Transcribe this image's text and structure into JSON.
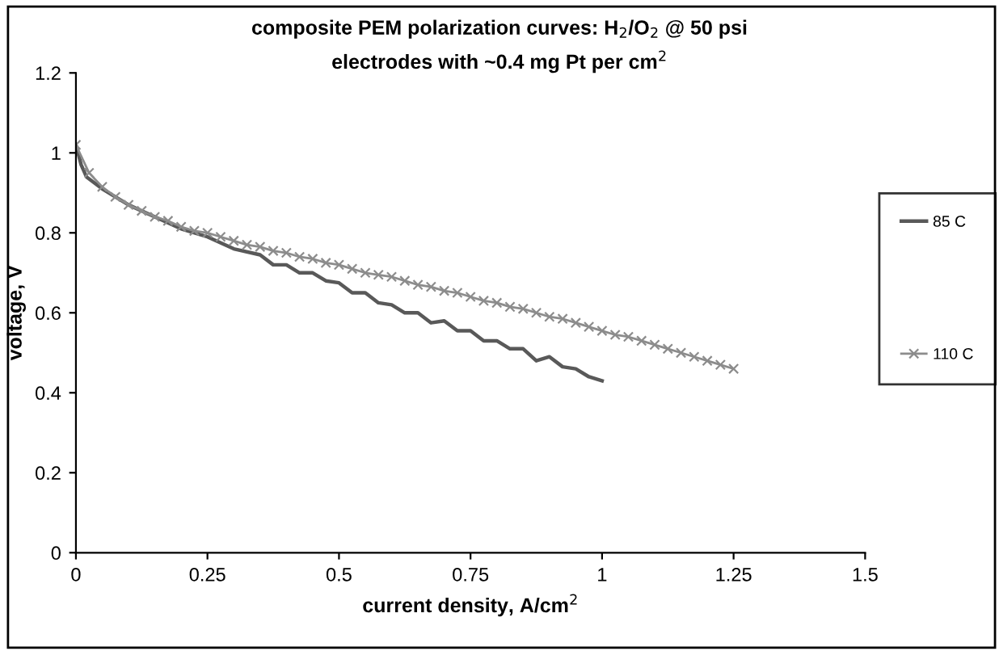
{
  "chart_data": {
    "type": "line",
    "title": "composite PEM polarization curves: H$_{2}$/O$_{2}$ @ 50 psi",
    "subtitle": "electrodes with ~0.4 mg Pt per cm$^{2}$",
    "xlabel": "current density, A/cm$^{2}$",
    "ylabel": "voltage, V",
    "xlim": [
      0,
      1.5
    ],
    "xticks": [
      0,
      0.25,
      0.5,
      0.75,
      1,
      1.25,
      1.5
    ],
    "ylim": [
      0,
      1.2
    ],
    "yticks": [
      0,
      0.2,
      0.4,
      0.6,
      0.8,
      1,
      1.2
    ],
    "grid": false,
    "legend": "right",
    "line_style": "solid",
    "series": [
      {
        "name": "85 C",
        "color": "#595959",
        "marker": "none",
        "x": [
          0,
          0.01,
          0.02,
          0.05,
          0.1,
          0.15,
          0.2,
          0.25,
          0.3,
          0.35,
          0.375,
          0.4,
          0.425,
          0.45,
          0.475,
          0.5,
          0.525,
          0.55,
          0.575,
          0.6,
          0.625,
          0.65,
          0.675,
          0.7,
          0.725,
          0.75,
          0.775,
          0.8,
          0.825,
          0.85,
          0.875,
          0.9,
          0.925,
          0.95,
          0.975,
          1.0
        ],
        "values": [
          1.02,
          0.97,
          0.94,
          0.91,
          0.87,
          0.84,
          0.81,
          0.79,
          0.76,
          0.745,
          0.72,
          0.72,
          0.7,
          0.7,
          0.68,
          0.675,
          0.65,
          0.65,
          0.625,
          0.62,
          0.6,
          0.6,
          0.575,
          0.58,
          0.555,
          0.555,
          0.53,
          0.53,
          0.51,
          0.51,
          0.48,
          0.49,
          0.465,
          0.46,
          0.44,
          0.43
        ]
      },
      {
        "name": "110 C",
        "color": "#8c8c8c",
        "marker": "cross",
        "x": [
          0,
          0.025,
          0.05,
          0.075,
          0.1,
          0.125,
          0.15,
          0.175,
          0.2,
          0.225,
          0.25,
          0.275,
          0.3,
          0.325,
          0.35,
          0.375,
          0.4,
          0.425,
          0.45,
          0.475,
          0.5,
          0.525,
          0.55,
          0.575,
          0.6,
          0.625,
          0.65,
          0.675,
          0.7,
          0.725,
          0.75,
          0.775,
          0.8,
          0.825,
          0.85,
          0.875,
          0.9,
          0.925,
          0.95,
          0.975,
          1.0,
          1.025,
          1.05,
          1.075,
          1.1,
          1.125,
          1.15,
          1.175,
          1.2,
          1.225,
          1.25
        ],
        "values": [
          1.02,
          0.95,
          0.915,
          0.89,
          0.87,
          0.855,
          0.84,
          0.83,
          0.815,
          0.805,
          0.8,
          0.79,
          0.78,
          0.77,
          0.765,
          0.755,
          0.75,
          0.74,
          0.735,
          0.725,
          0.72,
          0.71,
          0.7,
          0.695,
          0.69,
          0.68,
          0.67,
          0.665,
          0.655,
          0.65,
          0.64,
          0.63,
          0.625,
          0.615,
          0.61,
          0.6,
          0.59,
          0.585,
          0.575,
          0.565,
          0.555,
          0.545,
          0.54,
          0.53,
          0.52,
          0.51,
          0.5,
          0.49,
          0.48,
          0.47,
          0.46
        ]
      }
    ]
  }
}
